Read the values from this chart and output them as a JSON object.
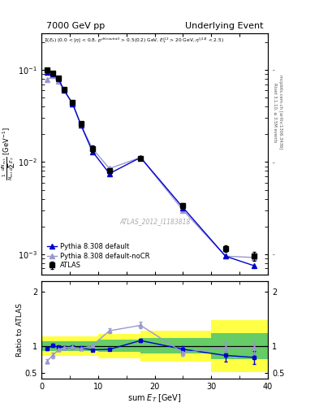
{
  "title_left": "7000 GeV pp",
  "title_right": "Underlying Event",
  "annotation": "ATLAS_2012_I1183818",
  "ylabel_main": "1/N_{evt} dN_{evt}/dsum E_{T}  [GeV^{-1}]",
  "ylabel_ratio": "Ratio to ATLAS",
  "xlabel": "sum E_{T} [GeV]",
  "right_label1": "Rivet 3.1.10, ≥ 3.5M events",
  "right_label2": "mcplots.cern.ch [arXiv:1306.3436]",
  "xlim": [
    0,
    40
  ],
  "ylim_main": [
    0.0006,
    0.25
  ],
  "ylim_ratio": [
    0.4,
    2.2
  ],
  "atlas_x": [
    1.0,
    2.0,
    3.0,
    4.0,
    5.5,
    7.0,
    9.0,
    12.0,
    17.5,
    25.0,
    32.5,
    37.5
  ],
  "atlas_y": [
    0.1,
    0.093,
    0.082,
    0.062,
    0.044,
    0.026,
    0.014,
    0.008,
    0.011,
    0.0034,
    0.00115,
    0.00095
  ],
  "atlas_yerr": [
    0.004,
    0.003,
    0.003,
    0.002,
    0.002,
    0.001,
    0.001,
    0.0004,
    0.0005,
    0.0002,
    0.0001,
    0.0001
  ],
  "pythia_default_x": [
    1.0,
    2.0,
    3.0,
    4.0,
    5.5,
    7.0,
    9.0,
    12.0,
    17.5,
    25.0,
    32.5,
    37.5
  ],
  "pythia_default_y": [
    0.095,
    0.09,
    0.08,
    0.06,
    0.043,
    0.025,
    0.013,
    0.0075,
    0.0112,
    0.0032,
    0.00095,
    0.00075
  ],
  "pythia_nocr_x": [
    1.0,
    2.0,
    3.0,
    4.0,
    5.5,
    7.0,
    9.0,
    12.0,
    17.5,
    25.0,
    32.5,
    37.5
  ],
  "pythia_nocr_y": [
    0.078,
    0.086,
    0.075,
    0.06,
    0.043,
    0.025,
    0.014,
    0.0085,
    0.0112,
    0.003,
    0.00095,
    0.00092
  ],
  "ratio_default_x": [
    1.0,
    2.0,
    3.0,
    4.0,
    5.5,
    7.0,
    9.0,
    12.0,
    17.5,
    25.0,
    32.5,
    37.5
  ],
  "ratio_default_y": [
    0.95,
    1.01,
    0.976,
    0.97,
    0.977,
    0.961,
    0.929,
    0.938,
    1.1,
    0.94,
    0.826,
    0.79
  ],
  "ratio_default_yerr": [
    0.03,
    0.025,
    0.02,
    0.02,
    0.02,
    0.025,
    0.02,
    0.02,
    0.025,
    0.05,
    0.12,
    0.12
  ],
  "ratio_nocr_x": [
    1.0,
    2.0,
    3.0,
    4.0,
    5.5,
    7.0,
    9.0,
    12.0,
    17.5,
    25.0,
    32.5,
    37.5
  ],
  "ratio_nocr_y": [
    0.72,
    0.83,
    0.93,
    0.97,
    0.978,
    0.95,
    1.01,
    1.28,
    1.38,
    0.88,
    0.97,
    0.97
  ],
  "ratio_nocr_yerr": [
    0.04,
    0.05,
    0.03,
    0.03,
    0.025,
    0.03,
    0.035,
    0.05,
    0.06,
    0.06,
    0.1,
    0.12
  ],
  "band_yellow_edges": [
    0,
    5,
    10,
    17.5,
    30,
    40
  ],
  "band_yellow_low": [
    0.82,
    0.82,
    0.78,
    0.72,
    0.52,
    0.52
  ],
  "band_yellow_high": [
    1.18,
    1.18,
    1.22,
    1.28,
    1.48,
    1.48
  ],
  "band_green_edges": [
    0,
    5,
    10,
    17.5,
    30,
    40
  ],
  "band_green_low": [
    0.91,
    0.91,
    0.89,
    0.86,
    0.76,
    0.76
  ],
  "band_green_high": [
    1.09,
    1.09,
    1.11,
    1.14,
    1.24,
    1.24
  ],
  "color_atlas": "#000000",
  "color_pythia_default": "#0000cc",
  "color_pythia_nocr": "#9999cc",
  "color_green": "#66cc66",
  "color_yellow": "#ffff44"
}
